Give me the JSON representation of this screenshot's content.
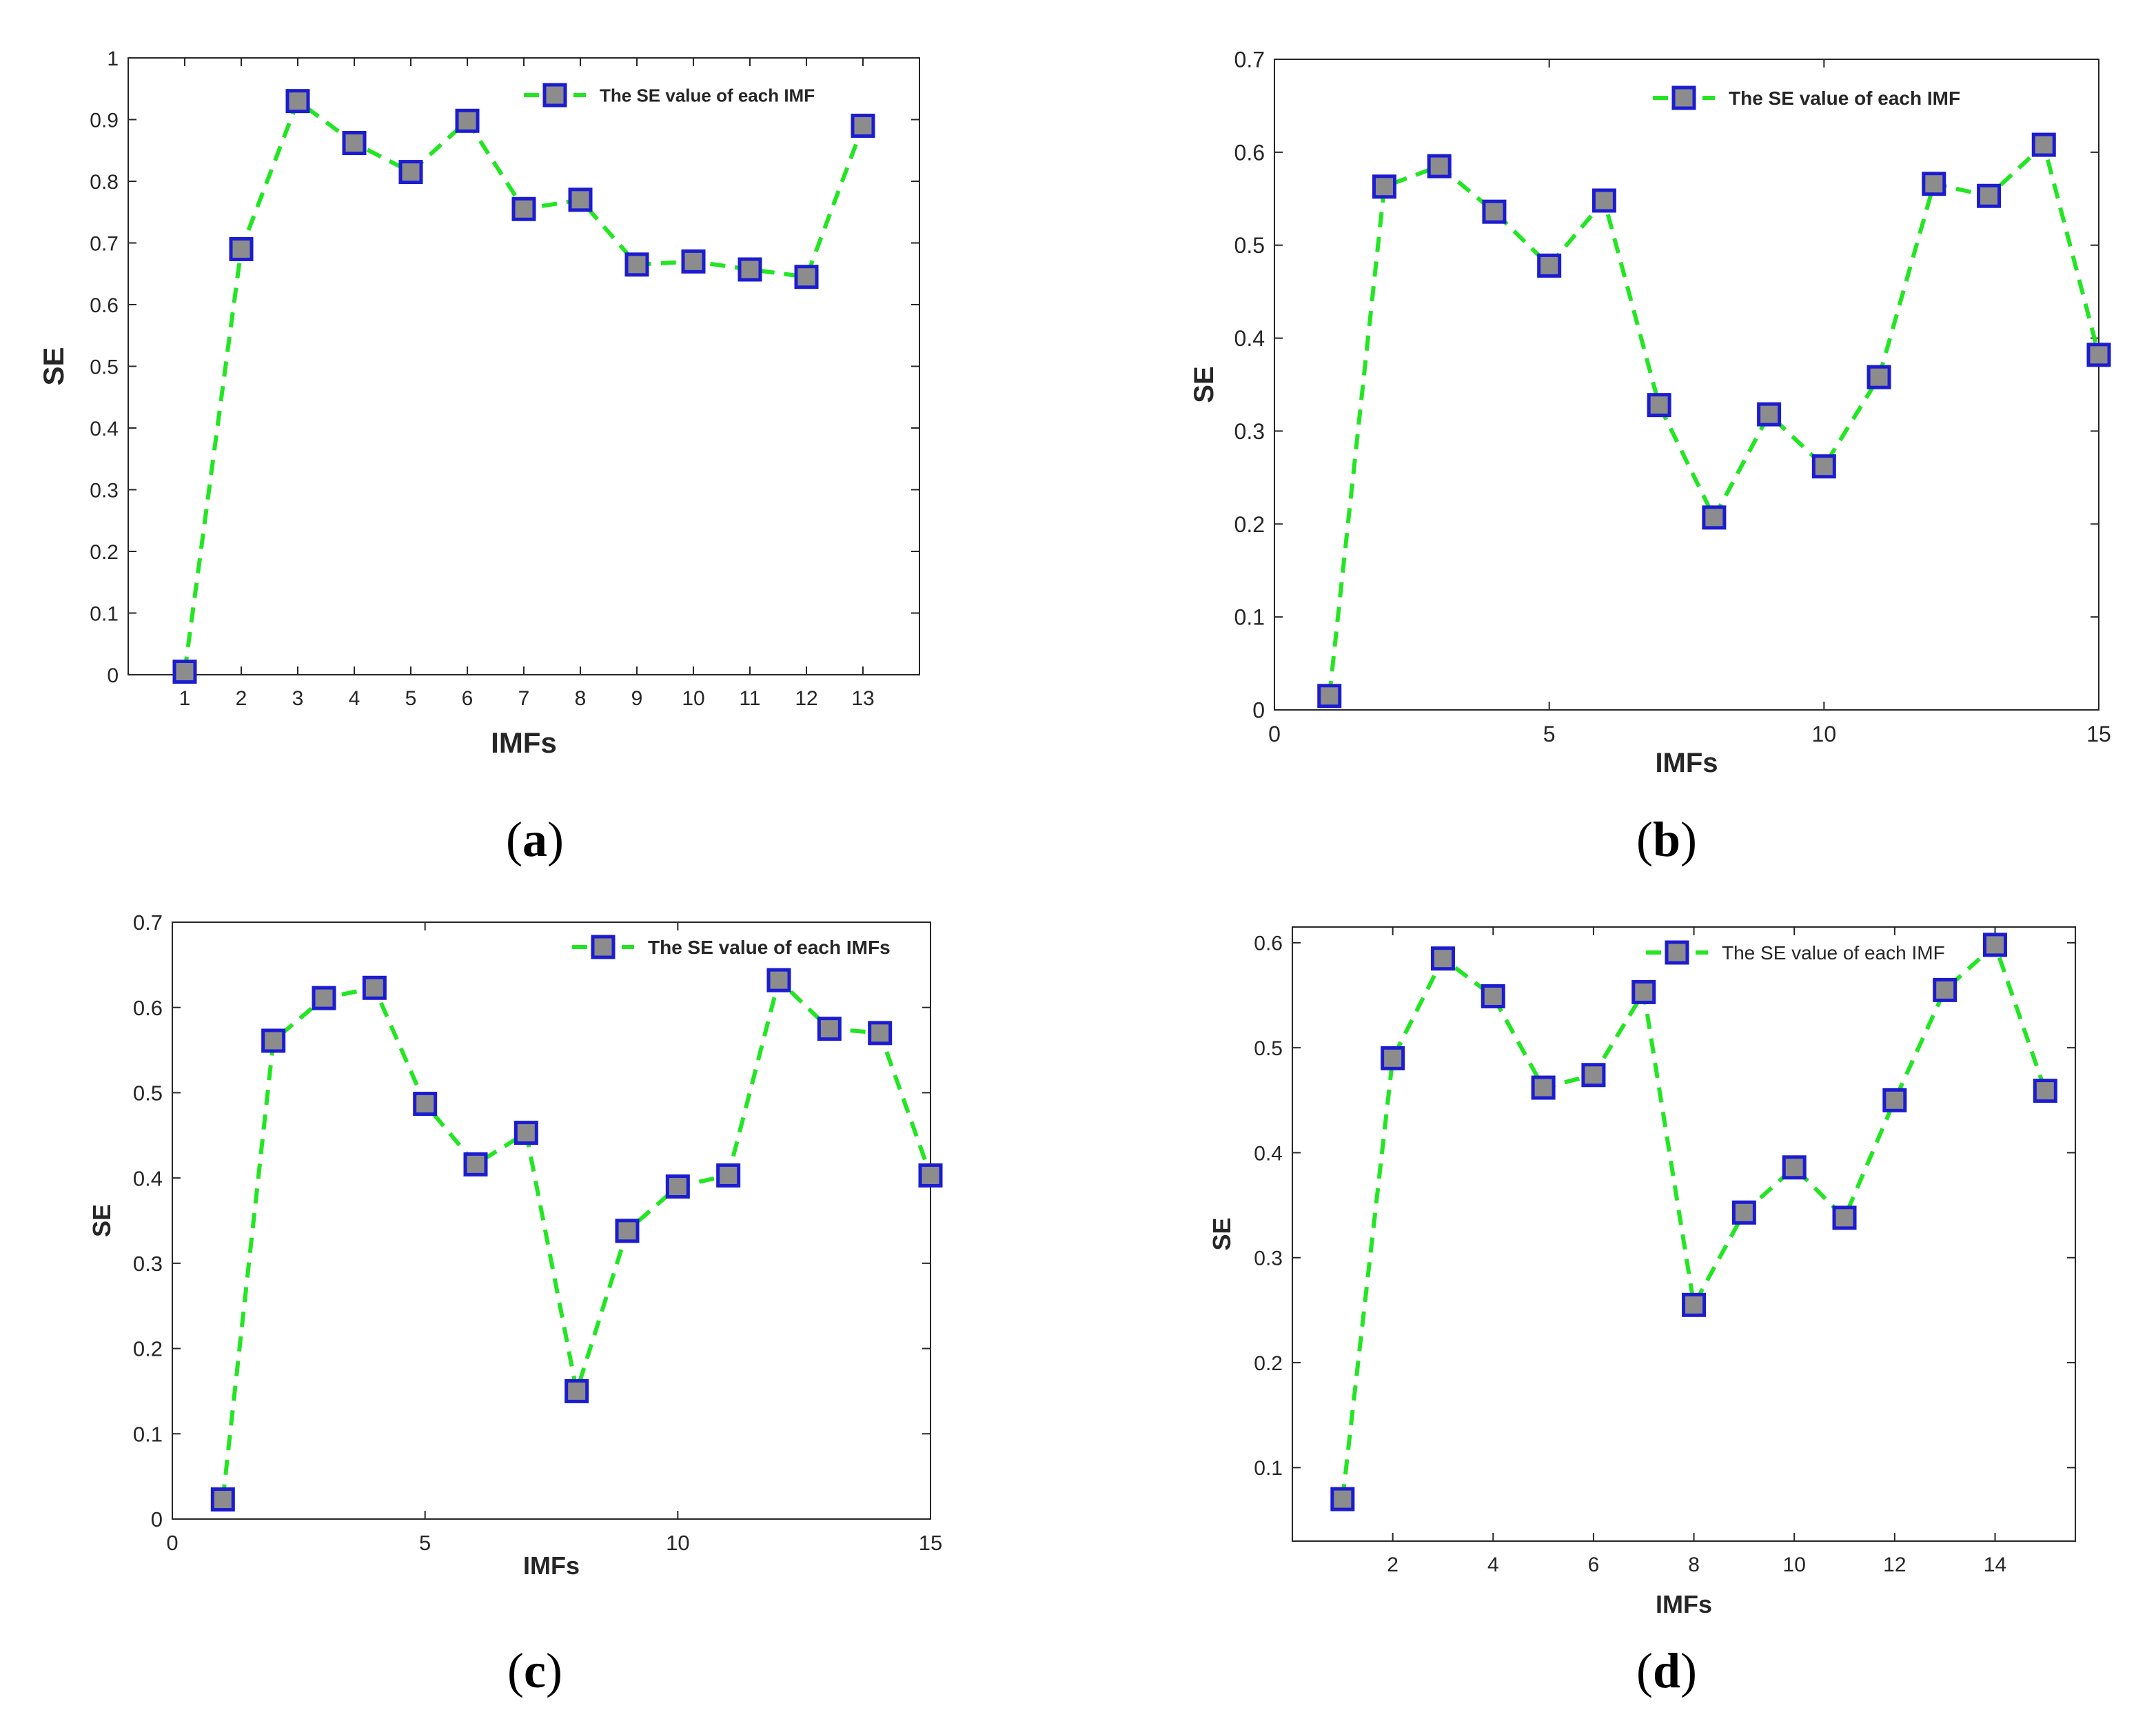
{
  "figure": {
    "captions": [
      "a",
      "b",
      "c",
      "d"
    ]
  },
  "colors": {
    "line": "#22e622",
    "marker_edge": "#1c1cd0",
    "marker_fill": "#8c8c8c",
    "axis": "#262626",
    "background": "#ffffff"
  },
  "chart_data": [
    {
      "id": "a",
      "type": "line",
      "title": "",
      "xlabel": "IMFs",
      "ylabel": "SE",
      "x": [
        1,
        2,
        3,
        4,
        5,
        6,
        7,
        8,
        9,
        10,
        11,
        12,
        13
      ],
      "series": [
        {
          "name": "The SE value of each IMF",
          "values": [
            0.005,
            0.69,
            0.93,
            0.862,
            0.815,
            0.898,
            0.755,
            0.77,
            0.665,
            0.67,
            0.657,
            0.645,
            0.89
          ]
        }
      ],
      "xlim": [
        0,
        14
      ],
      "ylim": [
        0,
        1
      ],
      "xticks": [
        1,
        2,
        3,
        4,
        5,
        6,
        7,
        8,
        9,
        10,
        11,
        12,
        13
      ],
      "xtick_labels": [
        "1",
        "2",
        "3",
        "4",
        "5",
        "6",
        "7",
        "8",
        "9",
        "10",
        "11",
        "12",
        "13"
      ],
      "yticks": [
        0,
        0.1,
        0.2,
        0.3,
        0.4,
        0.5,
        0.6,
        0.7,
        0.8,
        0.9,
        1
      ],
      "ytick_labels": [
        "0",
        "0.1",
        "0.2",
        "0.3",
        "0.4",
        "0.5",
        "0.6",
        "0.7",
        "0.8",
        "0.9",
        "1"
      ],
      "legend": "top-right",
      "grid": false
    },
    {
      "id": "b",
      "type": "line",
      "title": "",
      "xlabel": "IMFs",
      "ylabel": "SE",
      "x": [
        1,
        2,
        3,
        4,
        5,
        6,
        7,
        8,
        9,
        10,
        11,
        12,
        13,
        14,
        15
      ],
      "series": [
        {
          "name": "The SE value of each IMF",
          "values": [
            0.015,
            0.563,
            0.585,
            0.536,
            0.478,
            0.548,
            0.328,
            0.207,
            0.318,
            0.262,
            0.358,
            0.566,
            0.553,
            0.608,
            0.382
          ]
        }
      ],
      "xlim": [
        0,
        15
      ],
      "ylim": [
        0,
        0.7
      ],
      "xticks": [
        0,
        5,
        10,
        15
      ],
      "xtick_labels": [
        "0",
        "5",
        "10",
        "15"
      ],
      "yticks": [
        0,
        0.1,
        0.2,
        0.3,
        0.4,
        0.5,
        0.6,
        0.7
      ],
      "ytick_labels": [
        "0",
        "0.1",
        "0.2",
        "0.3",
        "0.4",
        "0.5",
        "0.6",
        "0.7"
      ],
      "legend": "top-right",
      "grid": false
    },
    {
      "id": "c",
      "type": "line",
      "title": "",
      "xlabel": "IMFs",
      "ylabel": "SE",
      "x": [
        1,
        2,
        3,
        4,
        5,
        6,
        7,
        8,
        9,
        10,
        11,
        12,
        13,
        14,
        15
      ],
      "series": [
        {
          "name": "The SE value of each IMFs",
          "values": [
            0.023,
            0.561,
            0.611,
            0.623,
            0.487,
            0.416,
            0.453,
            0.15,
            0.338,
            0.39,
            0.403,
            0.632,
            0.575,
            0.57,
            0.403
          ]
        }
      ],
      "xlim": [
        0,
        15
      ],
      "ylim": [
        0,
        0.7
      ],
      "xticks": [
        0,
        5,
        10,
        15
      ],
      "xtick_labels": [
        "0",
        "5",
        "10",
        "15"
      ],
      "yticks": [
        0,
        0.1,
        0.2,
        0.3,
        0.4,
        0.5,
        0.6,
        0.7
      ],
      "ytick_labels": [
        "0",
        "0.1",
        "0.2",
        "0.3",
        "0.4",
        "0.5",
        "0.6",
        "0.7"
      ],
      "legend": "top-right",
      "grid": false
    },
    {
      "id": "d",
      "type": "line",
      "title": "",
      "xlabel": "IMFs",
      "ylabel": "SE",
      "x": [
        1,
        2,
        3,
        4,
        5,
        6,
        7,
        8,
        9,
        10,
        11,
        12,
        13,
        14,
        15
      ],
      "series": [
        {
          "name": "The SE value of each IMF",
          "values": [
            0.07,
            0.49,
            0.585,
            0.549,
            0.462,
            0.474,
            0.553,
            0.255,
            0.343,
            0.386,
            0.338,
            0.45,
            0.555,
            0.598,
            0.459
          ]
        }
      ],
      "xlim": [
        0,
        15.6
      ],
      "ylim": [
        0.03,
        0.615
      ],
      "xticks": [
        2,
        4,
        6,
        8,
        10,
        12,
        14
      ],
      "xtick_labels": [
        "2",
        "4",
        "6",
        "8",
        "10",
        "12",
        "14"
      ],
      "yticks": [
        0.1,
        0.2,
        0.3,
        0.4,
        0.5,
        0.6
      ],
      "ytick_labels": [
        "0.1",
        "0.2",
        "0.3",
        "0.4",
        "0.5",
        "0.6"
      ],
      "legend": "top-right",
      "grid": false
    }
  ]
}
